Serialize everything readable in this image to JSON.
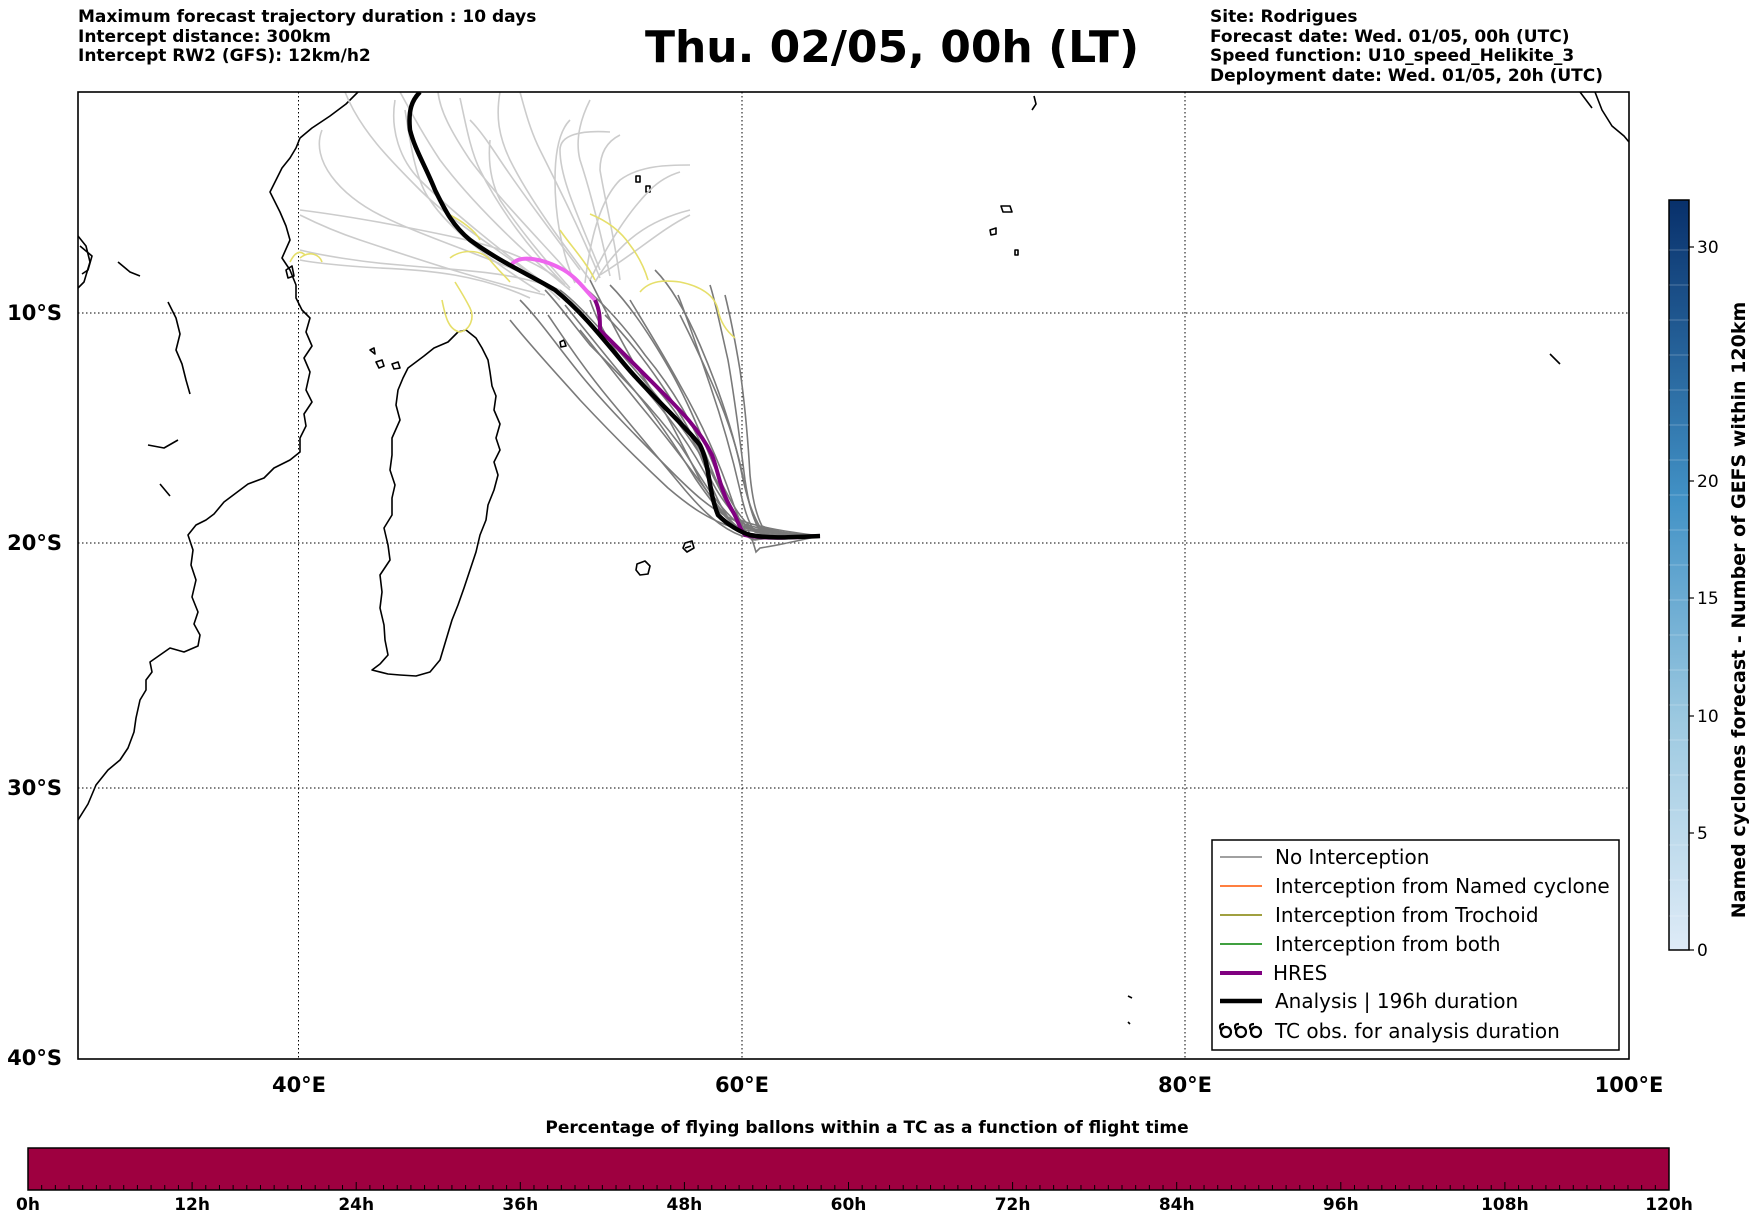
{
  "header": {
    "left": [
      "Maximum forecast trajectory duration : 10 days",
      "Intercept distance: 300km",
      "Intercept RW2 (GFS):  12km/h2"
    ],
    "title": "Thu. 02/05, 00h (LT)",
    "right": [
      "Site: Rodrigues",
      "Forecast date: Wed. 01/05, 00h (UTC)",
      "Speed function: U10_speed_Helikite_3",
      "Deployment date: Wed. 01/05, 20h (UTC)"
    ]
  },
  "map": {
    "lon_range": [
      30,
      100
    ],
    "lat_range": [
      -40,
      0
    ],
    "lon_ticks": [
      "40°E",
      "60°E",
      "80°E",
      "100°E"
    ],
    "lat_ticks": [
      "10°S",
      "20°S",
      "30°S",
      "40°S"
    ],
    "launch_site": "Rodrigues",
    "colors": {
      "no_interception": "#808080",
      "ensemble_faded": "#cccccc",
      "named_cyclone": "#ff5500",
      "trochoid": "#808000",
      "both": "#008000",
      "hres": "#800080",
      "hres_faded": "#ee66ee",
      "analysis": "#000000",
      "tc_track": "#e6df6a"
    }
  },
  "legend": {
    "items": [
      {
        "label": "No Interception",
        "color": "#808080",
        "style": "thin"
      },
      {
        "label": "Interception from Named cyclone",
        "color": "#ff5500",
        "style": "thin"
      },
      {
        "label": "Interception from Trochoid",
        "color": "#808000",
        "style": "thin"
      },
      {
        "label": "Interception from both",
        "color": "#008000",
        "style": "thin"
      },
      {
        "label": "HRES",
        "color": "#800080",
        "style": "thick"
      },
      {
        "label": "Analysis | 196h duration",
        "color": "#000000",
        "style": "thick"
      },
      {
        "label": "TC obs. for analysis duration",
        "color": "#000000",
        "style": "symbol"
      }
    ]
  },
  "right_colorbar": {
    "label": "Named cyclones forecast - Number of GEFS within 120km",
    "ticks": [
      "0",
      "5",
      "10",
      "15",
      "20",
      "30"
    ],
    "range": [
      0,
      32
    ]
  },
  "bottom_bar": {
    "title": "Percentage of flying ballons within a TC as a function of flight time",
    "ticks": [
      "0h",
      "12h",
      "24h",
      "36h",
      "48h",
      "60h",
      "72h",
      "84h",
      "96h",
      "108h",
      "120h"
    ],
    "fill_color": "#9e0040",
    "percentage_all": 100
  }
}
